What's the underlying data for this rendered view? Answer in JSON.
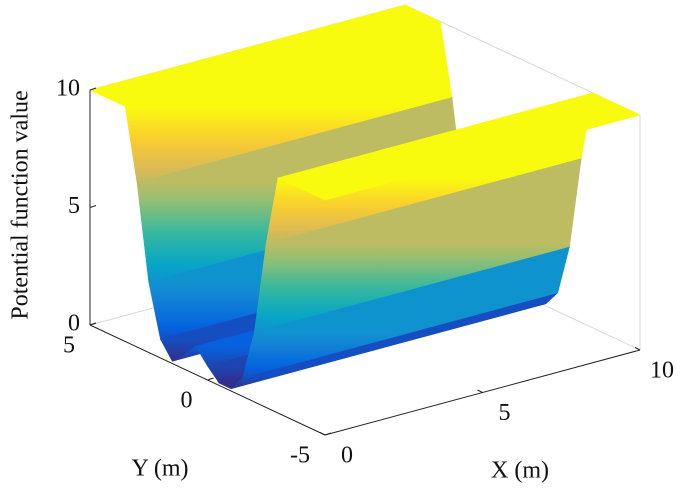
{
  "chart_data": {
    "type": "surface",
    "zlabel": "Potential function value",
    "ylabel": "Y (m)",
    "xlabel": "X (m)",
    "xlim": [
      0,
      10
    ],
    "xticks": [
      0,
      5,
      10
    ],
    "ylim": [
      -5,
      5
    ],
    "yticks": [
      -5,
      0,
      5
    ],
    "zlim": [
      0,
      10
    ],
    "zticks": [
      0,
      5,
      10
    ],
    "y": [
      5,
      4,
      3.5,
      3,
      2.5,
      2,
      1.5,
      1,
      0.5,
      0,
      -0.5,
      -1,
      -1.5,
      -2,
      -2.5,
      -3,
      -4,
      -5
    ],
    "z": [
      10,
      10,
      10,
      7,
      3,
      0.8,
      0.1,
      0.6,
      1.2,
      0.6,
      0.1,
      0.1,
      0.8,
      3,
      7,
      10,
      10,
      10
    ],
    "colormap": [
      "#352a87",
      "#0363e1",
      "#1485d4",
      "#06a7c6",
      "#38b99e",
      "#92bf73",
      "#d9ba56",
      "#fcce2e",
      "#f9fb0e"
    ]
  }
}
